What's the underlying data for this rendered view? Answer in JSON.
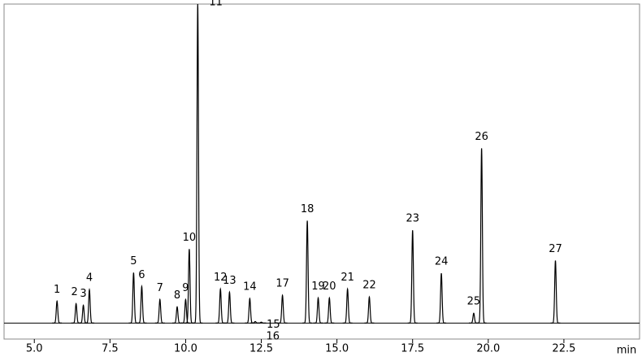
{
  "chart_data": {
    "type": "chromatogram",
    "x_label": "min",
    "xlim": [
      4.0,
      25.0
    ],
    "ylim": [
      -5,
      100
    ],
    "xticks": [
      {
        "value": 5,
        "label": "5.0"
      },
      7.5,
      {
        "value": 10,
        "label": "10.0"
      },
      12.5,
      {
        "value": 15,
        "label": "15.0"
      },
      17.5,
      {
        "value": 20,
        "label": "20.0"
      },
      22.5
    ],
    "color": "#000000",
    "peaks": {
      "labels": [
        "1",
        "2",
        "3",
        "4",
        "5",
        "6",
        "7",
        "8",
        "9",
        "10",
        "11",
        "12",
        "13",
        "14",
        "15",
        "16",
        "17",
        "18",
        "19",
        "20",
        "21",
        "22",
        "23",
        "24",
        "25",
        "26",
        "27"
      ],
      "x": [
        5.75,
        6.38,
        6.62,
        6.82,
        8.28,
        8.55,
        9.15,
        9.72,
        10.0,
        10.12,
        10.4,
        11.15,
        11.45,
        12.12,
        12.3,
        12.5,
        13.2,
        14.02,
        14.38,
        14.75,
        15.35,
        16.07,
        17.5,
        18.45,
        19.52,
        19.78,
        22.22
      ],
      "values": [
        6.9,
        6.1,
        5.6,
        10.5,
        15.8,
        11.5,
        7.4,
        5.1,
        7.4,
        23.2,
        100,
        10.7,
        9.7,
        7.7,
        0.5,
        0.3,
        8.7,
        32.1,
        7.9,
        7.9,
        10.7,
        8.2,
        29.1,
        15.6,
        3.1,
        54.8,
        19.6
      ]
    }
  }
}
